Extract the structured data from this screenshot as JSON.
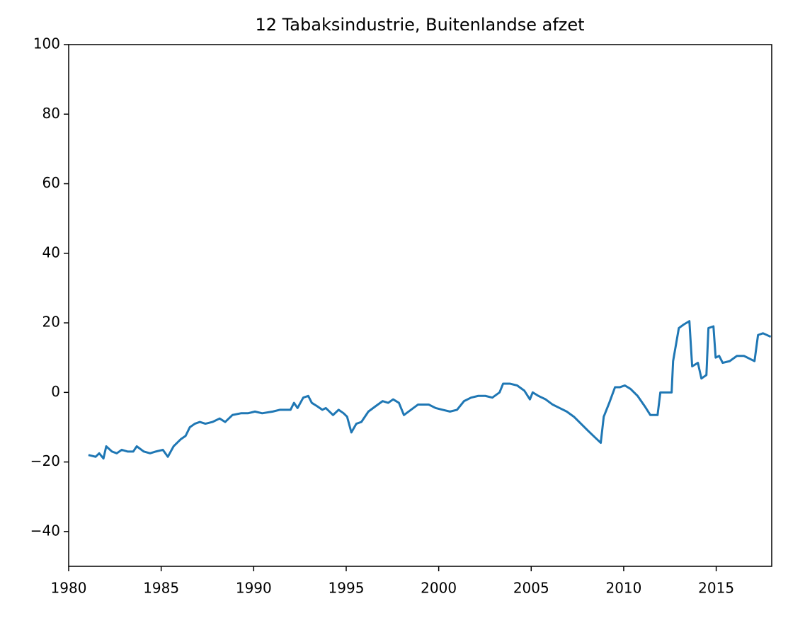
{
  "chart_data": {
    "type": "line",
    "title": "12 Tabaksindustrie, Buitenlandse afzet",
    "x": [
      1981.07,
      1981.46,
      1981.65,
      1981.88,
      1982.03,
      1982.34,
      1982.6,
      1982.87,
      1983.18,
      1983.49,
      1983.68,
      1984.06,
      1984.4,
      1984.71,
      1985.09,
      1985.36,
      1985.67,
      1986.05,
      1986.32,
      1986.55,
      1986.82,
      1987.09,
      1987.39,
      1987.77,
      1988.16,
      1988.46,
      1988.85,
      1989.31,
      1989.69,
      1990.07,
      1990.46,
      1991.03,
      1991.41,
      1991.99,
      1992.18,
      1992.37,
      1992.68,
      1992.95,
      1993.14,
      1993.44,
      1993.71,
      1993.9,
      1994.29,
      1994.59,
      1994.86,
      1995.05,
      1995.28,
      1995.55,
      1995.82,
      1996.2,
      1996.58,
      1996.97,
      1997.27,
      1997.54,
      1997.85,
      1998.12,
      1998.5,
      1998.88,
      1999.19,
      1999.46,
      1999.84,
      2000.22,
      2000.61,
      2000.99,
      2001.37,
      2001.75,
      2002.14,
      2002.52,
      2002.9,
      2003.29,
      2003.48,
      2003.86,
      2004.24,
      2004.63,
      2004.93,
      2005.08,
      2005.39,
      2005.78,
      2006.16,
      2006.54,
      2006.92,
      2007.31,
      2007.69,
      2008.07,
      2008.46,
      2008.76,
      2008.92,
      2009.22,
      2009.53,
      2009.8,
      2010.06,
      2010.37,
      2010.75,
      2011.14,
      2011.44,
      2011.83,
      2011.98,
      2012.29,
      2012.59,
      2012.67,
      2012.98,
      2013.24,
      2013.55,
      2013.7,
      2014.01,
      2014.2,
      2014.47,
      2014.58,
      2014.85,
      2014.97,
      2015.16,
      2015.35,
      2015.73,
      2016.12,
      2016.5,
      2016.88,
      2017.07,
      2017.26,
      2017.53,
      2017.95
    ],
    "series": [
      {
        "color": "#1f77b4",
        "values": [
          -18,
          -18.5,
          -17.5,
          -19,
          -15.5,
          -17,
          -17.5,
          -16.5,
          -17,
          -17,
          -15.5,
          -17,
          -17.5,
          -17,
          -16.5,
          -18.5,
          -15.5,
          -13.5,
          -12.5,
          -10,
          -9,
          -8.5,
          -9,
          -8.5,
          -7.5,
          -8.5,
          -6.5,
          -6,
          -6,
          -5.5,
          -6,
          -5.5,
          -5,
          -5,
          -3,
          -4.5,
          -1.5,
          -1,
          -3,
          -4,
          -5,
          -4.5,
          -6.5,
          -5,
          -6,
          -7,
          -11.5,
          -9,
          -8.5,
          -5.5,
          -4,
          -2.5,
          -3,
          -2,
          -3,
          -6.5,
          -5,
          -3.5,
          -3.5,
          -3.5,
          -4.5,
          -5,
          -5.5,
          -5,
          -2.5,
          -1.5,
          -1,
          -1,
          -1.5,
          0,
          2.5,
          2.5,
          2,
          0.5,
          -2,
          0,
          -1,
          -2,
          -3.5,
          -4.5,
          -5.5,
          -7,
          -9,
          -11,
          -13,
          -14.5,
          -7,
          -3,
          1.5,
          1.5,
          2,
          1,
          -1,
          -4,
          -6.5,
          -6.5,
          0,
          0,
          0,
          9,
          18.5,
          19.5,
          20.5,
          7.5,
          8.5,
          4,
          5,
          18.5,
          19,
          10,
          10.5,
          8.5,
          9,
          10.5,
          10.5,
          9.5,
          9,
          16.5,
          17,
          16
        ]
      }
    ],
    "xlim": [
      1980,
      2018
    ],
    "xticks": [
      1980,
      1985,
      1990,
      1995,
      2000,
      2005,
      2010,
      2015
    ],
    "ylim": [
      -50,
      100
    ],
    "yticks": [
      {
        "value": -40,
        "label": "−40"
      },
      {
        "value": -20,
        "label": "−20"
      },
      0,
      20,
      40,
      60,
      80,
      100
    ]
  }
}
